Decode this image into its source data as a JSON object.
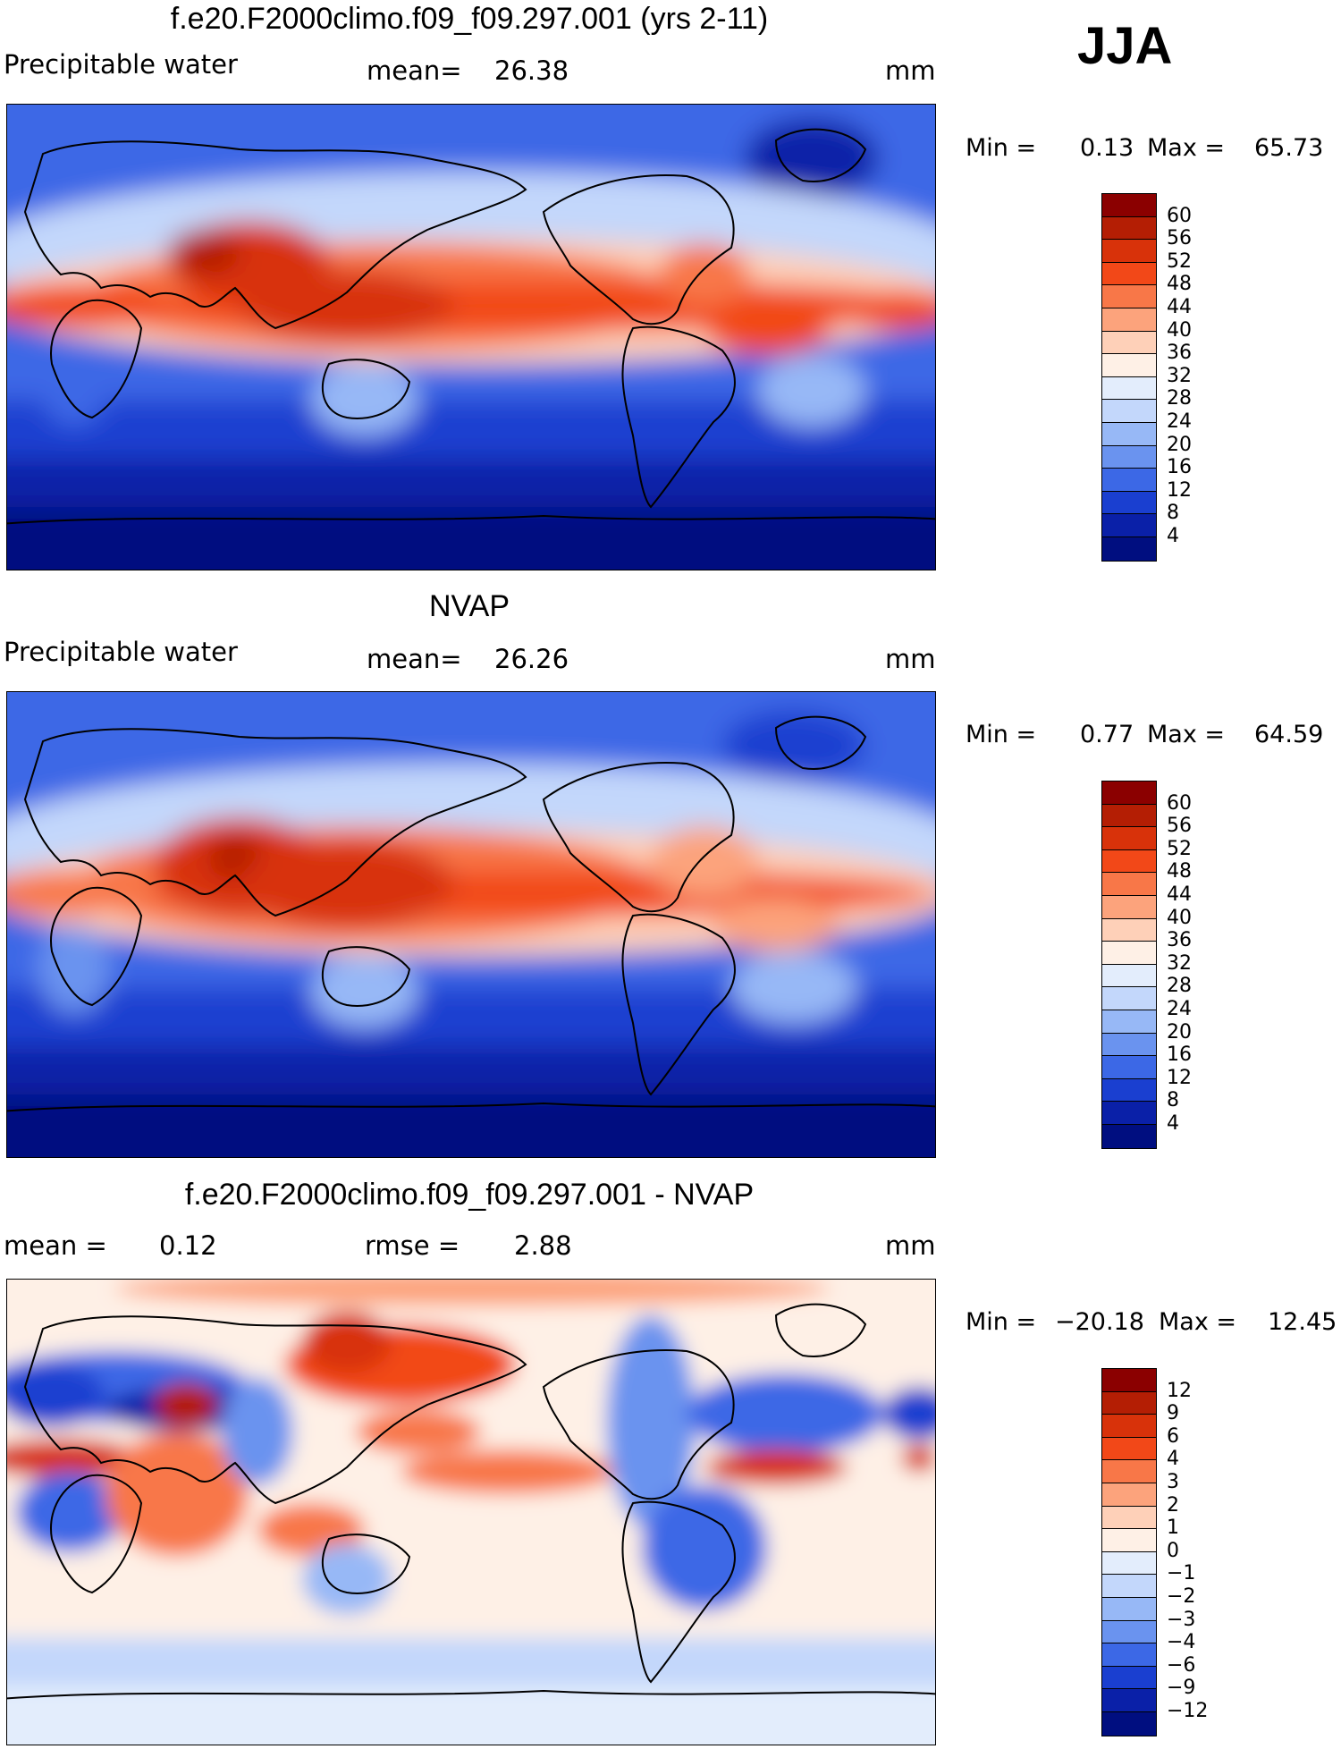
{
  "season": "JJA",
  "panels": [
    {
      "title": "f.e20.F2000climo.f09_f09.297.001 (yrs 2-11)",
      "field": "Precipitable water",
      "mean_label": "mean=",
      "mean_value": "26.38",
      "units": "mm",
      "min_label": "Min =",
      "min_value": "0.13",
      "max_label": "Max =",
      "max_value": "65.73",
      "colorbar": {
        "ticks": [
          "60",
          "56",
          "52",
          "48",
          "44",
          "40",
          "36",
          "32",
          "28",
          "24",
          "20",
          "16",
          "12",
          "8",
          "4"
        ],
        "colors": [
          "#8b0000",
          "#b41e04",
          "#d8320a",
          "#f24818",
          "#f87748",
          "#fca37c",
          "#fed0b8",
          "#fef0e6",
          "#e3edfc",
          "#c3d7fb",
          "#97b8f6",
          "#6a93ef",
          "#3c68e6",
          "#1a3fd0",
          "#0a20a8",
          "#000e80"
        ]
      }
    },
    {
      "title": "NVAP",
      "field": "Precipitable water",
      "mean_label": "mean=",
      "mean_value": "26.26",
      "units": "mm",
      "min_label": "Min =",
      "min_value": "0.77",
      "max_label": "Max =",
      "max_value": "64.59",
      "colorbar": {
        "ticks": [
          "60",
          "56",
          "52",
          "48",
          "44",
          "40",
          "36",
          "32",
          "28",
          "24",
          "20",
          "16",
          "12",
          "8",
          "4"
        ],
        "colors": [
          "#8b0000",
          "#b41e04",
          "#d8320a",
          "#f24818",
          "#f87748",
          "#fca37c",
          "#fed0b8",
          "#fef0e6",
          "#e3edfc",
          "#c3d7fb",
          "#97b8f6",
          "#6a93ef",
          "#3c68e6",
          "#1a3fd0",
          "#0a20a8",
          "#000e80"
        ]
      }
    },
    {
      "title": "f.e20.F2000climo.f09_f09.297.001 - NVAP",
      "mean_label": "mean =",
      "mean_value": "0.12",
      "rmse_label": "rmse =",
      "rmse_value": "2.88",
      "units": "mm",
      "min_label": "Min =",
      "min_value": "−20.18",
      "max_label": "Max =",
      "max_value": "12.45",
      "colorbar": {
        "ticks": [
          "12",
          "9",
          "6",
          "4",
          "3",
          "2",
          "1",
          "0",
          "−1",
          "−2",
          "−3",
          "−4",
          "−6",
          "−9",
          "−12"
        ],
        "colors": [
          "#8b0000",
          "#b41e04",
          "#d8320a",
          "#f24818",
          "#f87748",
          "#fca37c",
          "#fed0b8",
          "#fef0e6",
          "#e3edfc",
          "#c3d7fb",
          "#97b8f6",
          "#6a93ef",
          "#3c68e6",
          "#1a3fd0",
          "#0a20a8",
          "#000e80"
        ]
      }
    }
  ]
}
